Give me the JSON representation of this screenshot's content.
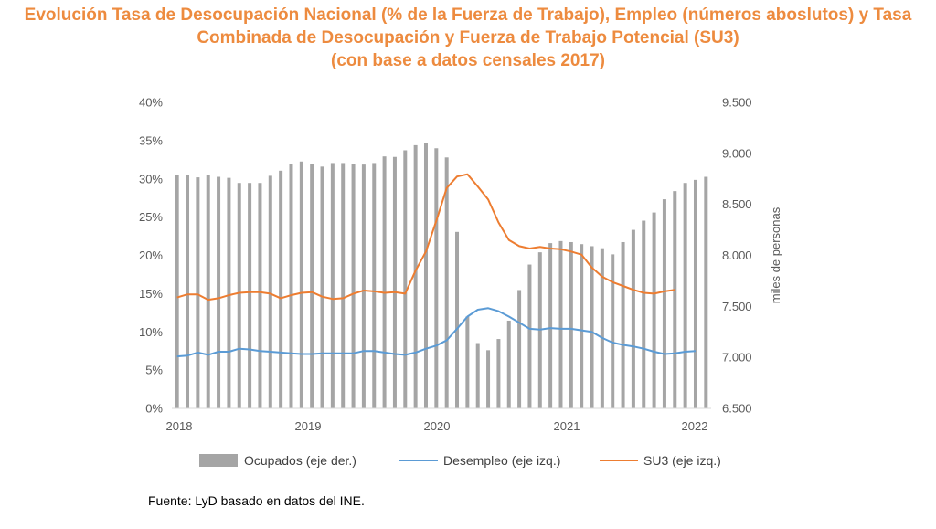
{
  "title_lines": [
    "Evolución Tasa de Desocupación Nacional (% de la Fuerza de Trabajo), Empleo (números aboslutos) y Tasa",
    "Combinada de Desocupación y Fuerza de Trabajo Potencial (SU3)",
    "(con base a datos censales 2017)"
  ],
  "source": "Fuente: LyD basado en datos del INE.",
  "colors": {
    "title": "#ED8B3F",
    "bars": "#A5A5A5",
    "desempleo": "#5B9BD5",
    "su3": "#ED7D31",
    "axis_text": "#595959",
    "gridline": "#D9D9D9"
  },
  "chart_data": {
    "type": "bar+line",
    "title": "Evolución Tasa de Desocupación Nacional (% de la Fuerza de Trabajo), Empleo (números aboslutos) y Tasa Combinada de Desocupación y Fuerza de Trabajo Potencial (SU3)",
    "x_tick_labels": [
      "2018",
      "2019",
      "2020",
      "2021",
      "2022"
    ],
    "left_axis": {
      "ticks": [
        "0%",
        "5%",
        "10%",
        "15%",
        "20%",
        "25%",
        "30%",
        "35%",
        "40%"
      ],
      "ylim": [
        0,
        40
      ]
    },
    "right_axis": {
      "ticks": [
        "6.500",
        "7.000",
        "7.500",
        "8.000",
        "8.500",
        "9.000",
        "9.500"
      ],
      "ylim": [
        6500,
        9500
      ],
      "label": "miles de personas"
    },
    "series": [
      {
        "name": "Ocupados (eje der.)",
        "type": "bar",
        "axis": "right",
        "values": [
          8790,
          8790,
          8765,
          8785,
          8770,
          8760,
          8710,
          8710,
          8710,
          8780,
          8830,
          8900,
          8920,
          8900,
          8870,
          8905,
          8905,
          8900,
          8890,
          8905,
          8970,
          8965,
          9030,
          9080,
          9100,
          9050,
          8960,
          8230,
          7400,
          7140,
          7070,
          7180,
          7360,
          7660,
          7910,
          8030,
          8120,
          8140,
          8130,
          8110,
          8090,
          8070,
          8010,
          8130,
          8250,
          8340,
          8420,
          8550,
          8630,
          8710,
          8740,
          8770
        ]
      },
      {
        "name": "Desempleo (eje izq.)",
        "type": "line",
        "axis": "left",
        "values": [
          6.8,
          6.9,
          7.3,
          7.0,
          7.4,
          7.4,
          7.8,
          7.7,
          7.5,
          7.4,
          7.3,
          7.2,
          7.1,
          7.1,
          7.2,
          7.2,
          7.2,
          7.2,
          7.5,
          7.5,
          7.3,
          7.1,
          7.0,
          7.3,
          7.8,
          8.2,
          8.9,
          10.4,
          12.0,
          12.9,
          13.1,
          12.7,
          12.0,
          11.2,
          10.4,
          10.3,
          10.5,
          10.4,
          10.4,
          10.2,
          10.0,
          9.2,
          8.6,
          8.3,
          8.1,
          7.8,
          7.4,
          7.1,
          7.2,
          7.4,
          7.5
        ]
      },
      {
        "name": "SU3 (eje izq.)",
        "type": "line",
        "axis": "left",
        "values": [
          14.5,
          14.9,
          14.9,
          14.2,
          14.4,
          14.8,
          15.1,
          15.2,
          15.2,
          15.0,
          14.4,
          14.8,
          15.1,
          15.2,
          14.6,
          14.3,
          14.4,
          15.0,
          15.4,
          15.3,
          15.1,
          15.2,
          15.0,
          18.0,
          20.5,
          24.5,
          28.8,
          30.3,
          30.6,
          29.0,
          27.3,
          24.3,
          22.0,
          21.2,
          20.9,
          21.1,
          20.9,
          20.8,
          20.5,
          20.1,
          18.4,
          17.2,
          16.5,
          16.0,
          15.5,
          15.1,
          15.0,
          15.3,
          15.5
        ]
      }
    ],
    "legend": [
      "Ocupados (eje der.)",
      "Desempleo (eje izq.)",
      "SU3 (eje izq.)"
    ],
    "legend_position": "bottom"
  }
}
